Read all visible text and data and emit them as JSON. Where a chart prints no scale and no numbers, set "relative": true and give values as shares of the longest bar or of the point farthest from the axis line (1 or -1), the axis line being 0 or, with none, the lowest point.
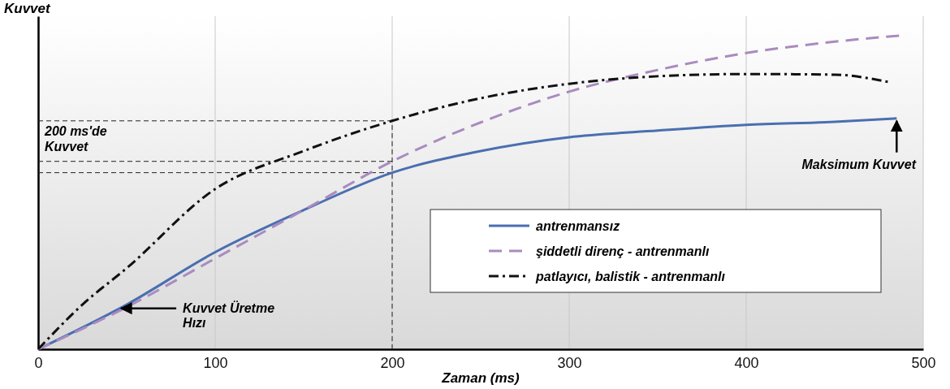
{
  "chart_data": {
    "type": "line",
    "xlabel": "Zaman (ms)",
    "ylabel": "Kuvvet",
    "relative": true,
    "xlim": [
      0,
      500
    ],
    "xticks": [
      0,
      100,
      200,
      300,
      400,
      500
    ],
    "grid": "x",
    "legend": "right",
    "marker": "none",
    "series": [
      {
        "name": "antrenmansız",
        "color": "#4a6fb0",
        "line_style": "solid",
        "x": [
          0,
          50,
          100,
          150,
          200,
          250,
          300,
          350,
          400,
          450,
          485
        ],
        "values": [
          0,
          0.142,
          0.309,
          0.443,
          0.562,
          0.631,
          0.675,
          0.696,
          0.714,
          0.724,
          0.735
        ]
      },
      {
        "name": "şiddetli direnç - antrenmanlı",
        "color": "#a98bc0",
        "line_style": "dashed",
        "x": [
          0,
          50,
          100,
          150,
          200,
          250,
          300,
          350,
          400,
          450,
          490
        ],
        "values": [
          0,
          0.134,
          0.289,
          0.443,
          0.598,
          0.722,
          0.82,
          0.889,
          0.943,
          0.979,
          1
        ]
      },
      {
        "name": "patlayıcı, balistik - antrenmanlı",
        "color": "#111111",
        "line_style": "dotted",
        "x": [
          0,
          25,
          50,
          100,
          150,
          200,
          250,
          300,
          350,
          400,
          450,
          480
        ],
        "values": [
          0,
          0.142,
          0.258,
          0.51,
          0.631,
          0.727,
          0.799,
          0.845,
          0.869,
          0.876,
          0.874,
          0.851
        ]
      }
    ],
    "ref_lines": [
      {
        "axis": "x",
        "value": 200
      },
      {
        "axis": "y",
        "value": 0.727,
        "label": "200 ms'de Kuvvet"
      },
      {
        "axis": "y",
        "value": 0.598
      },
      {
        "axis": "y",
        "value": 0.562
      }
    ],
    "annotations": [
      {
        "text": "Maksimum Kuvvet",
        "x": 485,
        "y": 0.735
      },
      {
        "text": "Kuvvet Üretme Hızı",
        "x": 45,
        "y": 0.13
      }
    ]
  }
}
